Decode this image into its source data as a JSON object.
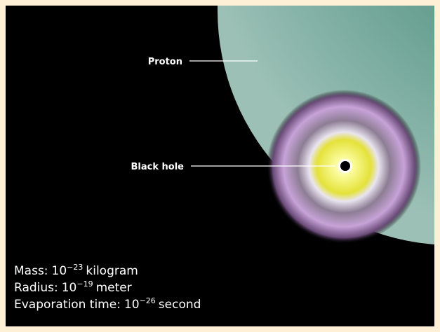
{
  "labels": {
    "proton": "Proton",
    "black_hole": "Black hole"
  },
  "properties": [
    {
      "label": "Mass:",
      "base": "10",
      "exponent": "−23",
      "unit": "kilogram"
    },
    {
      "label": "Radius:",
      "base": "10",
      "exponent": "−19",
      "unit": "meter"
    },
    {
      "label": "Evaporation time:",
      "base": "10",
      "exponent": "−26",
      "unit": "second"
    }
  ]
}
